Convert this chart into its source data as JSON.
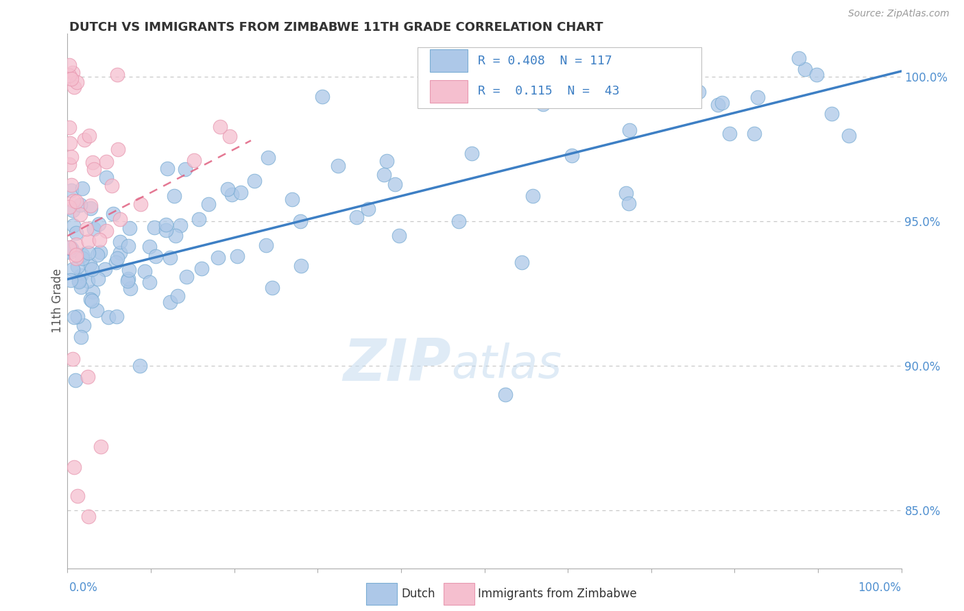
{
  "title": "DUTCH VS IMMIGRANTS FROM ZIMBABWE 11TH GRADE CORRELATION CHART",
  "source_text": "Source: ZipAtlas.com",
  "ylabel": "11th Grade",
  "right_yticks": [
    85.0,
    90.0,
    95.0,
    100.0
  ],
  "right_ytick_labels": [
    "85.0%",
    "90.0%",
    "95.0%",
    "100.0%"
  ],
  "watermark_zip": "ZIP",
  "watermark_atlas": "atlas",
  "dutch_color": "#adc8e8",
  "dutch_edge_color": "#7aadd4",
  "zimbabwe_color": "#f5bfcf",
  "zimbabwe_edge_color": "#e898b0",
  "dutch_line_color": "#3d7fc4",
  "zimbabwe_line_color": "#e06080",
  "bg_color": "#ffffff",
  "grid_color": "#c8c8c8",
  "axis_color": "#aaaaaa",
  "title_color": "#333333",
  "right_axis_color": "#5090d0",
  "legend_color": "#3d7fc4",
  "xlim": [
    0,
    100
  ],
  "ylim": [
    83.0,
    101.5
  ],
  "dutch_line_x0": 0,
  "dutch_line_x1": 100,
  "dutch_line_y0": 93.0,
  "dutch_line_y1": 100.2,
  "zimb_line_x0": 0,
  "zimb_line_x1": 22,
  "zimb_line_y0": 94.5,
  "zimb_line_y1": 97.8
}
